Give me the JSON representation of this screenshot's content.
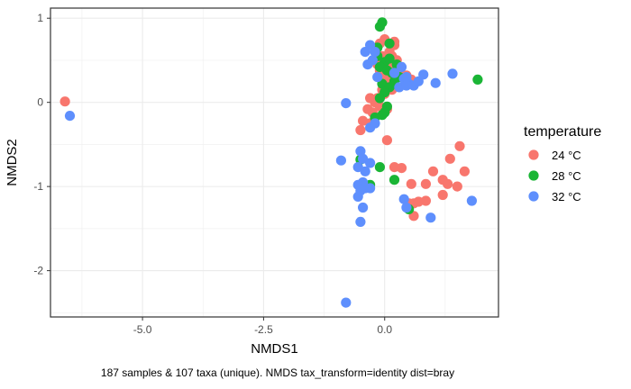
{
  "chart_data": {
    "type": "scatter",
    "xlabel": "NMDS1",
    "ylabel": "NMDS2",
    "caption": "187 samples & 107 taxa (unique). NMDS tax_transform=identity dist=bray",
    "xlim": [
      -6.9,
      2.35
    ],
    "ylim": [
      -2.55,
      1.12
    ],
    "x_ticks": [
      -5.0,
      -2.5,
      0.0
    ],
    "x_tick_labels": [
      "-5.0",
      "-2.5",
      "0.0"
    ],
    "y_ticks": [
      -2,
      -1,
      0,
      1
    ],
    "y_tick_labels": [
      "-2",
      "-1",
      "0",
      "1"
    ],
    "grid": true,
    "legend": {
      "title": "temperature",
      "position": "right",
      "entries": [
        "24 °C",
        "28 °C",
        "32 °C"
      ]
    },
    "colors": {
      "24 °C": "#F8766D",
      "28 °C": "#1AB535",
      "32 °C": "#5E8FFD"
    },
    "series": [
      {
        "name": "24 °C",
        "points": [
          [
            -6.6,
            0.01
          ],
          [
            -0.1,
            0.7
          ],
          [
            0.0,
            0.75
          ],
          [
            0.1,
            0.6
          ],
          [
            0.15,
            0.55
          ],
          [
            0.2,
            0.68
          ],
          [
            -0.05,
            0.55
          ],
          [
            0.05,
            0.5
          ],
          [
            0.1,
            0.42
          ],
          [
            -0.15,
            0.45
          ],
          [
            0.2,
            0.72
          ],
          [
            0.25,
            0.5
          ],
          [
            -0.05,
            0.45
          ],
          [
            0.15,
            0.45
          ],
          [
            0.3,
            0.38
          ],
          [
            -0.1,
            0.38
          ],
          [
            0.0,
            0.3
          ],
          [
            0.1,
            0.28
          ],
          [
            0.05,
            0.2
          ],
          [
            -0.05,
            0.15
          ],
          [
            0.15,
            0.15
          ],
          [
            0.0,
            0.1
          ],
          [
            -0.15,
            0.05
          ],
          [
            -0.2,
            0.0
          ],
          [
            -0.1,
            -0.05
          ],
          [
            0.05,
            -0.08
          ],
          [
            -0.3,
            0.05
          ],
          [
            -0.25,
            -0.12
          ],
          [
            -0.45,
            -0.22
          ],
          [
            -0.3,
            -0.25
          ],
          [
            -0.5,
            -0.33
          ],
          [
            -0.35,
            -0.08
          ],
          [
            0.45,
            0.32
          ],
          [
            0.55,
            0.27
          ],
          [
            0.05,
            -0.45
          ],
          [
            0.2,
            -0.77
          ],
          [
            0.35,
            -0.78
          ],
          [
            0.55,
            -0.97
          ],
          [
            0.85,
            -0.97
          ],
          [
            1.0,
            -0.82
          ],
          [
            1.2,
            -0.92
          ],
          [
            1.35,
            -0.67
          ],
          [
            1.55,
            -0.52
          ],
          [
            1.65,
            -0.82
          ],
          [
            1.3,
            -0.97
          ],
          [
            1.2,
            -1.1
          ],
          [
            1.5,
            -1.0
          ],
          [
            0.6,
            -1.2
          ],
          [
            0.7,
            -1.18
          ],
          [
            0.85,
            -1.17
          ],
          [
            0.5,
            -1.2
          ],
          [
            0.6,
            -1.35
          ]
        ]
      },
      {
        "name": "28 °C",
        "points": [
          [
            -0.1,
            0.9
          ],
          [
            -0.05,
            0.95
          ],
          [
            -0.15,
            0.55
          ],
          [
            0.0,
            0.48
          ],
          [
            0.1,
            0.52
          ],
          [
            -0.1,
            0.42
          ],
          [
            0.05,
            0.38
          ],
          [
            0.15,
            0.35
          ],
          [
            0.2,
            0.25
          ],
          [
            -0.05,
            0.22
          ],
          [
            0.1,
            0.18
          ],
          [
            0.0,
            0.12
          ],
          [
            -0.1,
            0.05
          ],
          [
            0.05,
            -0.05
          ],
          [
            -0.05,
            -0.15
          ],
          [
            0.0,
            -0.12
          ],
          [
            -0.2,
            -0.18
          ],
          [
            0.3,
            0.3
          ],
          [
            0.25,
            0.45
          ],
          [
            -0.15,
            0.65
          ],
          [
            0.1,
            0.7
          ],
          [
            1.92,
            0.27
          ],
          [
            -0.5,
            -0.68
          ],
          [
            -0.1,
            -0.77
          ],
          [
            0.2,
            -0.92
          ],
          [
            -0.5,
            -1.0
          ],
          [
            -0.3,
            -0.98
          ],
          [
            0.5,
            -1.27
          ]
        ]
      },
      {
        "name": "32 °C",
        "points": [
          [
            -6.5,
            -0.16
          ],
          [
            -0.4,
            0.6
          ],
          [
            -0.3,
            0.68
          ],
          [
            -0.2,
            0.6
          ],
          [
            -0.35,
            0.45
          ],
          [
            0.2,
            0.35
          ],
          [
            0.35,
            0.42
          ],
          [
            0.4,
            0.28
          ],
          [
            0.5,
            0.22
          ],
          [
            0.6,
            0.2
          ],
          [
            0.7,
            0.25
          ],
          [
            0.45,
            0.3
          ],
          [
            0.3,
            0.18
          ],
          [
            -0.25,
            0.5
          ],
          [
            -0.15,
            0.3
          ],
          [
            0.45,
            0.2
          ],
          [
            0.8,
            0.33
          ],
          [
            1.05,
            0.23
          ],
          [
            -0.8,
            -0.01
          ],
          [
            -0.3,
            -0.3
          ],
          [
            -0.2,
            -0.25
          ],
          [
            1.4,
            0.34
          ],
          [
            -0.5,
            -0.58
          ],
          [
            -0.45,
            -0.67
          ],
          [
            -0.9,
            -0.69
          ],
          [
            -0.3,
            -0.72
          ],
          [
            -0.55,
            -0.77
          ],
          [
            -0.4,
            -0.82
          ],
          [
            -0.45,
            -0.95
          ],
          [
            -0.55,
            -0.98
          ],
          [
            -0.4,
            -1.02
          ],
          [
            -0.3,
            -1.02
          ],
          [
            -0.5,
            -1.05
          ],
          [
            -0.55,
            -1.12
          ],
          [
            -0.45,
            -1.25
          ],
          [
            -0.5,
            -1.42
          ],
          [
            0.4,
            -1.15
          ],
          [
            0.45,
            -1.25
          ],
          [
            0.95,
            -1.37
          ],
          [
            1.8,
            -1.17
          ],
          [
            -0.8,
            -2.38
          ]
        ]
      }
    ]
  }
}
